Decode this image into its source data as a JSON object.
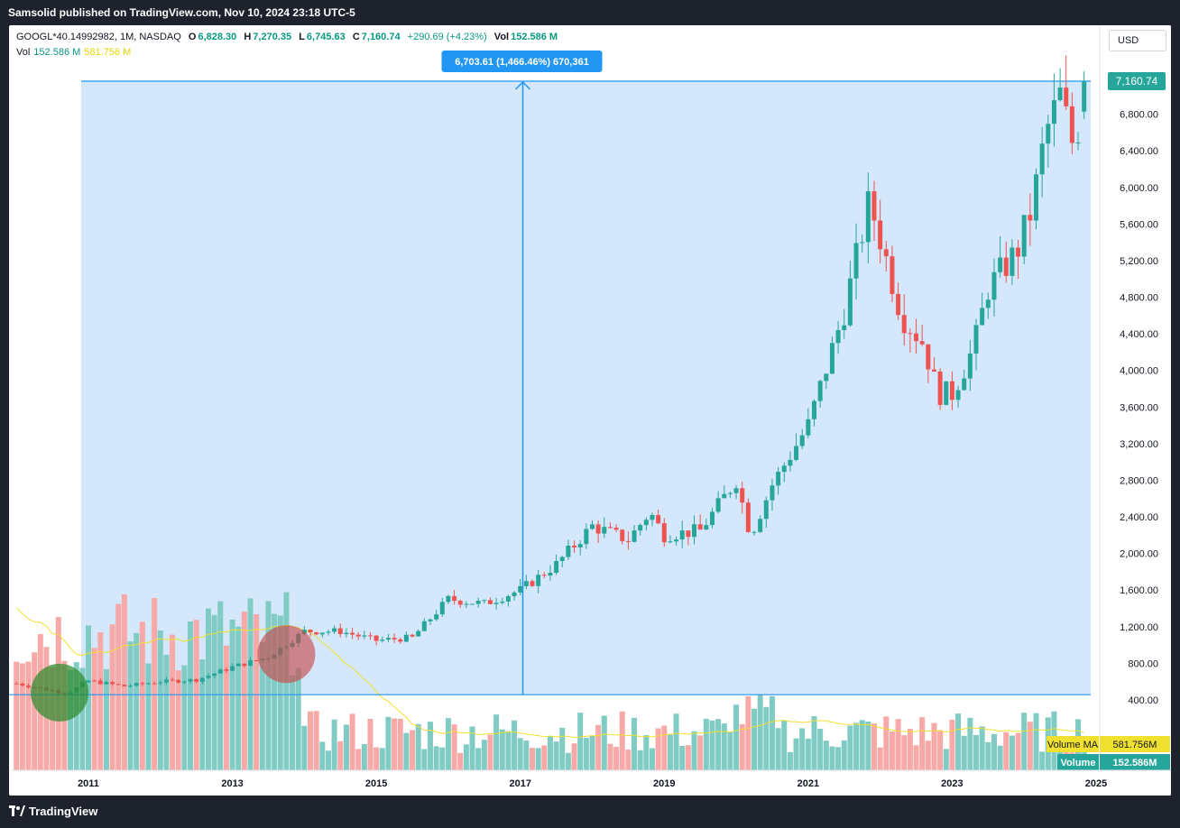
{
  "header": {
    "publisher": "Samsolid published on TradingView.com, Nov 10, 2024 23:18 UTC-5"
  },
  "legend": {
    "symbol": "GOOGL*40.14992982, 1M, NASDAQ",
    "o_label": "O",
    "o": "6,828.30",
    "h_label": "H",
    "h": "7,270.35",
    "l_label": "L",
    "l": "6,745.63",
    "c_label": "C",
    "c": "7,160.74",
    "change": "+290.69 (+4.23%)",
    "vol_label": "Vol",
    "vol": "152.586 M",
    "vol2_label": "Vol",
    "vol2": "152.586 M",
    "vol_ma": "581.756 M"
  },
  "currency": "USD",
  "footer": {
    "brand": "TradingView"
  },
  "colors": {
    "up": "#26a69a",
    "down": "#ef5350",
    "volume_up": "#80cbc4",
    "volume_down": "#f7a9a7",
    "measure": "#2196f3",
    "ma": "#f0e030"
  },
  "chart_data": {
    "type": "candlestick",
    "interval": "1M",
    "ylim": [
      400,
      7400
    ],
    "y_ticks": [
      "400.00",
      "800.00",
      "1,200.00",
      "1,600.00",
      "2,000.00",
      "2,400.00",
      "2,800.00",
      "3,200.00",
      "3,600.00",
      "4,000.00",
      "4,400.00",
      "4,800.00",
      "5,200.00",
      "5,600.00",
      "6,000.00",
      "6,400.00",
      "6,800.00",
      "7,200.00"
    ],
    "x_ticks": [
      "2011",
      "2013",
      "2015",
      "2017",
      "2019",
      "2021",
      "2023",
      "2025"
    ],
    "x_tick_years": [
      2011,
      2013,
      2015,
      2017,
      2019,
      2021,
      2023,
      2025
    ],
    "start_year": 2010,
    "start_month": 1,
    "last_price": "7,160.74",
    "close_anchors": [
      [
        2010.0,
        580
      ],
      [
        2010.7,
        470
      ],
      [
        2011.0,
        610
      ],
      [
        2011.5,
        550
      ],
      [
        2012.0,
        600
      ],
      [
        2012.5,
        620
      ],
      [
        2013.0,
        760
      ],
      [
        2013.5,
        870
      ],
      [
        2014.0,
        1150
      ],
      [
        2014.5,
        1150
      ],
      [
        2015.0,
        1050
      ],
      [
        2015.5,
        1080
      ],
      [
        2016.0,
        1500
      ],
      [
        2016.5,
        1450
      ],
      [
        2017.0,
        1600
      ],
      [
        2017.5,
        1880
      ],
      [
        2018.0,
        2300
      ],
      [
        2018.5,
        2150
      ],
      [
        2018.8,
        2450
      ],
      [
        2019.0,
        2200
      ],
      [
        2019.5,
        2250
      ],
      [
        2020.0,
        2800
      ],
      [
        2020.2,
        2200
      ],
      [
        2020.5,
        2750
      ],
      [
        2021.0,
        3400
      ],
      [
        2021.5,
        4650
      ],
      [
        2021.85,
        5850
      ],
      [
        2022.0,
        5450
      ],
      [
        2022.3,
        4600
      ],
      [
        2022.6,
        4300
      ],
      [
        2022.8,
        3750
      ],
      [
        2023.0,
        3750
      ],
      [
        2023.3,
        4250
      ],
      [
        2023.5,
        4900
      ],
      [
        2023.9,
        5300
      ],
      [
        2024.1,
        5750
      ],
      [
        2024.3,
        6600
      ],
      [
        2024.5,
        7000
      ],
      [
        2024.7,
        6400
      ],
      [
        2024.85,
        7160
      ]
    ],
    "measure": {
      "label": "6,703.61 (1,466.46%) 670,361",
      "from_price": 457.13,
      "to_price": 7160.74,
      "from_year": 2010.9,
      "to_year": 2024.85
    },
    "volume": {
      "label": "Volume",
      "value": "152.586M",
      "ma_label": "Volume MA",
      "ma_value": "581.756M"
    },
    "annotations": [
      {
        "type": "circle",
        "color": "green",
        "year": 2010.6,
        "price": 480
      },
      {
        "type": "circle",
        "color": "red",
        "year": 2013.75,
        "price": 900
      }
    ]
  }
}
